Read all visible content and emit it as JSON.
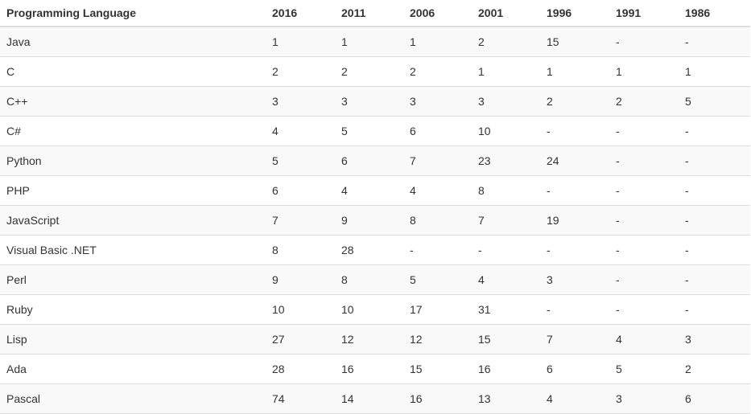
{
  "table": {
    "headers": [
      "Programming Language",
      "2016",
      "2011",
      "2006",
      "2001",
      "1996",
      "1991",
      "1986"
    ],
    "rows": [
      [
        "Java",
        "1",
        "1",
        "1",
        "2",
        "15",
        "-",
        "-"
      ],
      [
        "C",
        "2",
        "2",
        "2",
        "1",
        "1",
        "1",
        "1"
      ],
      [
        "C++",
        "3",
        "3",
        "3",
        "3",
        "2",
        "2",
        "5"
      ],
      [
        "C#",
        "4",
        "5",
        "6",
        "10",
        "-",
        "-",
        "-"
      ],
      [
        "Python",
        "5",
        "6",
        "7",
        "23",
        "24",
        "-",
        "-"
      ],
      [
        "PHP",
        "6",
        "4",
        "4",
        "8",
        "-",
        "-",
        "-"
      ],
      [
        "JavaScript",
        "7",
        "9",
        "8",
        "7",
        "19",
        "-",
        "-"
      ],
      [
        "Visual Basic .NET",
        "8",
        "28",
        "-",
        "-",
        "-",
        "-",
        "-"
      ],
      [
        "Perl",
        "9",
        "8",
        "5",
        "4",
        "3",
        "-",
        "-"
      ],
      [
        "Ruby",
        "10",
        "10",
        "17",
        "31",
        "-",
        "-",
        "-"
      ],
      [
        "Lisp",
        "27",
        "12",
        "12",
        "15",
        "7",
        "4",
        "3"
      ],
      [
        "Ada",
        "28",
        "16",
        "15",
        "16",
        "6",
        "5",
        "2"
      ],
      [
        "Pascal",
        "74",
        "14",
        "16",
        "13",
        "4",
        "3",
        "6"
      ]
    ]
  },
  "colors": {
    "text": "#333333",
    "row_stripe": "#f9f9f9",
    "border": "#dddddd",
    "background": "#ffffff"
  }
}
